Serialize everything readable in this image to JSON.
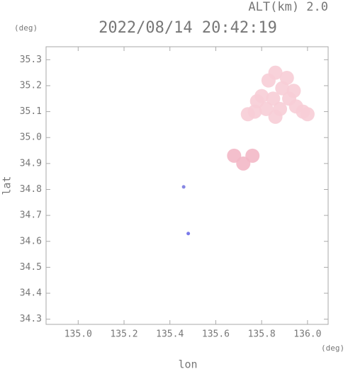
{
  "chart_data": {
    "type": "scatter",
    "title": "2022/08/14 20:42:19",
    "subtitle": "ALT(km)  2.0",
    "x_label": "lon",
    "y_label": "lat",
    "x_unit": "(deg)",
    "y_unit": "(deg)",
    "x": [
      135.83,
      135.86,
      135.8,
      135.85,
      135.89,
      135.92,
      135.95,
      135.98,
      135.88,
      135.82,
      135.77,
      135.74,
      135.91,
      135.94,
      136.0,
      135.78,
      135.86,
      135.68,
      135.72,
      135.76,
      135.46,
      135.48
    ],
    "y": [
      35.22,
      35.25,
      35.16,
      35.15,
      35.19,
      35.15,
      35.12,
      35.1,
      35.11,
      35.11,
      35.1,
      35.09,
      35.23,
      35.18,
      35.09,
      35.14,
      35.08,
      34.93,
      34.9,
      34.93,
      34.81,
      34.63
    ],
    "colors": [
      "#f7cdd6",
      "#f7cdd6",
      "#f7cdd6",
      "#f7cdd6",
      "#f7cdd6",
      "#f7cdd6",
      "#f7cdd6",
      "#f7cdd6",
      "#f7cdd6",
      "#f7cdd6",
      "#f7cdd6",
      "#f7cdd6",
      "#f7cdd6",
      "#f7cdd6",
      "#f7cdd6",
      "#f7cdd6",
      "#f7cdd6",
      "#f3b8c6",
      "#f3b8c6",
      "#f3b8c6",
      "#7a7ae0",
      "#6a6ae8"
    ],
    "xlim": [
      134.86,
      136.09
    ],
    "ylim": [
      34.28,
      35.35
    ],
    "xticks": [
      {
        "value": 135,
        "label": "135.0"
      },
      135.2,
      135.4,
      135.6,
      135.8,
      {
        "value": 136,
        "label": "136.0"
      }
    ],
    "yticks": [
      34.3,
      34.4,
      34.5,
      34.6,
      34.7,
      34.8,
      34.9,
      {
        "value": 35,
        "label": "35.0"
      },
      35.1,
      35.2,
      35.3
    ]
  }
}
